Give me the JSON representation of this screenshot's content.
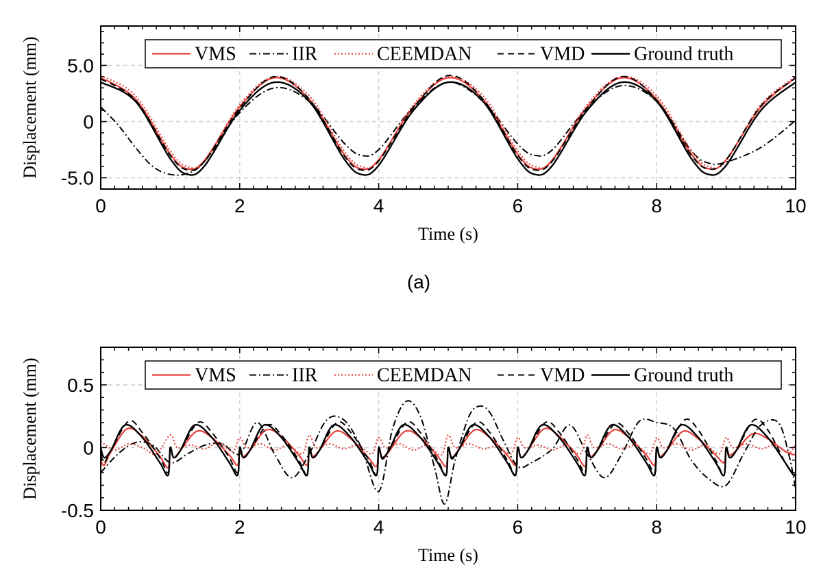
{
  "chart_data": [
    {
      "type": "line",
      "panel_label": "(a)",
      "xlabel": "Time (s)",
      "ylabel": "Displacement (mm)",
      "xlim": [
        0,
        10
      ],
      "ylim": [
        -6.0,
        8.5
      ],
      "xticks": [
        0,
        2,
        4,
        6,
        8,
        10
      ],
      "xtick_labels": [
        "0",
        "2",
        "4",
        "6",
        "8",
        "10"
      ],
      "yticks": [
        -5.0,
        0,
        5.0
      ],
      "ytick_labels": [
        "-5.0",
        "0",
        "5.0"
      ],
      "grid": true,
      "legend_position": "top",
      "legend": [
        "VMS",
        "IIR",
        "CEEMDAN",
        "VMD",
        "Ground truth"
      ],
      "series": [
        {
          "name": "VMS",
          "color": "#e8413c",
          "dash": "solid",
          "width": 2.2,
          "x": [
            0,
            0.5,
            1,
            1.25,
            1.5,
            2,
            2.5,
            3,
            3.5,
            3.75,
            4,
            4.5,
            5,
            5.5,
            6,
            6.25,
            6.5,
            7,
            7.5,
            8,
            8.5,
            8.75,
            9,
            9.5,
            10
          ],
          "y": [
            3.9,
            2.0,
            -2.9,
            -4.2,
            -3.4,
            1.3,
            3.9,
            2.0,
            -2.9,
            -4.2,
            -3.4,
            1.3,
            3.9,
            2.0,
            -2.9,
            -4.2,
            -3.4,
            1.3,
            3.9,
            2.0,
            -2.9,
            -4.2,
            -3.4,
            1.3,
            3.9
          ]
        },
        {
          "name": "IIR",
          "color": "#000000",
          "dash": "10,4,2,4",
          "width": 2.0,
          "x": [
            0,
            0.25,
            0.5,
            0.75,
            1,
            1.25,
            1.5,
            2,
            2.5,
            3,
            3.5,
            3.75,
            4,
            4.5,
            5,
            5.5,
            6,
            6.25,
            6.5,
            7,
            7.5,
            8,
            8.5,
            8.75,
            9,
            9.5,
            10
          ],
          "y": [
            1.3,
            -0.3,
            -2.3,
            -4.0,
            -4.7,
            -4.6,
            -3.5,
            0.8,
            3.0,
            1.8,
            -1.9,
            -3.0,
            -2.5,
            1.3,
            3.5,
            1.8,
            -2.0,
            -3.0,
            -2.5,
            1.2,
            3.2,
            1.8,
            -2.6,
            -3.7,
            -3.6,
            -2.3,
            0.1
          ]
        },
        {
          "name": "CEEMDAN",
          "color": "#e8413c",
          "dash": "2,3",
          "width": 2.2,
          "x": [
            0,
            0.5,
            1,
            1.25,
            1.5,
            2,
            2.5,
            3,
            3.5,
            3.75,
            4,
            4.5,
            5,
            5.5,
            6,
            6.25,
            6.5,
            7,
            7.5,
            8,
            8.5,
            8.75,
            9,
            9.5,
            10
          ],
          "y": [
            4.1,
            2.3,
            -2.6,
            -4.0,
            -3.5,
            1.5,
            4.0,
            2.3,
            -2.6,
            -4.0,
            -3.5,
            1.5,
            4.0,
            2.3,
            -2.6,
            -4.0,
            -3.5,
            1.5,
            4.0,
            2.3,
            -2.6,
            -4.0,
            -3.5,
            1.5,
            4.0
          ]
        },
        {
          "name": "VMD",
          "color": "#000000",
          "dash": "9,6",
          "width": 2.0,
          "x": [
            0,
            0.5,
            1,
            1.25,
            1.5,
            2,
            2.5,
            3,
            3.5,
            3.75,
            4,
            4.5,
            5,
            5.5,
            6,
            6.25,
            6.5,
            7,
            7.5,
            8,
            8.5,
            8.75,
            9,
            9.5,
            10
          ],
          "y": [
            3.8,
            1.9,
            -3.0,
            -4.3,
            -3.5,
            1.2,
            4.0,
            2.0,
            -3.0,
            -4.3,
            -3.5,
            1.2,
            4.1,
            2.0,
            -3.0,
            -4.3,
            -3.5,
            1.2,
            4.0,
            1.9,
            -3.0,
            -4.2,
            -3.4,
            1.4,
            3.9
          ]
        },
        {
          "name": "Ground truth",
          "color": "#000000",
          "dash": "solid",
          "width": 2.4,
          "x": [
            0,
            0.5,
            1,
            1.25,
            1.5,
            2,
            2.5,
            3,
            3.5,
            3.75,
            4,
            4.5,
            5,
            5.5,
            6,
            6.25,
            6.5,
            7,
            7.5,
            8,
            8.5,
            8.75,
            9,
            9.5,
            10
          ],
          "y": [
            3.5,
            1.8,
            -3.3,
            -4.7,
            -3.9,
            1.0,
            3.5,
            1.8,
            -3.3,
            -4.7,
            -3.9,
            1.0,
            3.5,
            1.8,
            -3.3,
            -4.7,
            -3.9,
            1.0,
            3.5,
            1.8,
            -3.3,
            -4.7,
            -3.9,
            1.0,
            3.5
          ]
        }
      ]
    },
    {
      "type": "line",
      "xlabel": "Time (s)",
      "ylabel": "Displacement (mm)",
      "xlim": [
        0,
        10
      ],
      "ylim": [
        -0.5,
        0.8
      ],
      "xticks": [
        0,
        2,
        4,
        6,
        8,
        10
      ],
      "xtick_labels": [
        "0",
        "2",
        "4",
        "6",
        "8",
        "10"
      ],
      "yticks": [
        -0.5,
        0,
        0.5
      ],
      "ytick_labels": [
        "-0.5",
        "0",
        "0.5"
      ],
      "grid": true,
      "legend_position": "top",
      "legend": [
        "VMS",
        "IIR",
        "CEEMDAN",
        "VMD",
        "Ground truth"
      ],
      "series": [
        {
          "name": "VMS",
          "color": "#e8413c",
          "dash": "solid",
          "width": 2.2,
          "x": [
            0,
            0.05,
            0.15,
            0.38,
            0.6,
            0.85,
            0.97,
            1.0,
            1.05,
            1.15,
            1.38,
            1.6,
            1.85,
            1.97,
            2.0,
            2.05,
            2.15,
            2.38,
            2.6,
            2.85,
            2.97,
            3.0,
            3.05,
            3.15,
            3.38,
            3.6,
            3.85,
            3.97,
            4.0,
            4.05,
            4.15,
            4.38,
            4.6,
            4.85,
            4.97,
            5.0,
            5.05,
            5.15,
            5.38,
            5.6,
            5.85,
            5.97,
            6.0,
            6.05,
            6.15,
            6.38,
            6.6,
            6.85,
            6.97,
            7.0,
            7.05,
            7.15,
            7.38,
            7.6,
            7.85,
            7.97,
            8.0,
            8.05,
            8.15,
            8.38,
            8.6,
            8.85,
            8.97,
            9.0,
            9.05,
            9.15,
            9.38,
            9.6,
            9.85,
            10.0
          ],
          "y": [
            -0.1,
            -0.14,
            -0.03,
            0.15,
            0.09,
            -0.07,
            -0.16,
            0.0,
            -0.08,
            -0.02,
            0.13,
            0.08,
            -0.06,
            -0.14,
            0.0,
            -0.07,
            -0.02,
            0.14,
            0.09,
            -0.06,
            -0.14,
            0.0,
            -0.07,
            -0.02,
            0.13,
            0.07,
            -0.08,
            -0.15,
            0.0,
            -0.09,
            -0.03,
            0.13,
            0.08,
            -0.07,
            -0.15,
            0.0,
            -0.08,
            -0.02,
            0.14,
            0.08,
            -0.06,
            -0.14,
            0.0,
            -0.08,
            -0.02,
            0.15,
            0.09,
            -0.06,
            -0.15,
            0.0,
            -0.07,
            -0.02,
            0.14,
            0.08,
            -0.06,
            -0.14,
            0.0,
            -0.07,
            -0.02,
            0.13,
            0.07,
            -0.06,
            -0.12,
            0.0,
            -0.06,
            -0.02,
            0.11,
            0.07,
            -0.03,
            -0.06
          ]
        },
        {
          "name": "IIR",
          "color": "#000000",
          "dash": "10,4,2,4",
          "width": 2.0,
          "x": [
            0,
            0.25,
            0.5,
            0.75,
            1.0,
            1.25,
            1.5,
            1.75,
            2.0,
            2.25,
            2.5,
            2.75,
            3.0,
            3.25,
            3.5,
            3.75,
            4.0,
            4.2,
            4.4,
            4.6,
            4.8,
            4.95,
            5.1,
            5.3,
            5.45,
            5.6,
            5.8,
            6.0,
            6.2,
            6.5,
            6.75,
            7.0,
            7.25,
            7.5,
            7.75,
            8.0,
            8.25,
            8.5,
            8.75,
            9.0,
            9.25,
            9.5,
            9.75,
            9.9,
            10.0
          ],
          "y": [
            -0.2,
            -0.05,
            0.04,
            0.02,
            -0.12,
            -0.05,
            0.02,
            0.03,
            -0.05,
            0.2,
            -0.05,
            -0.24,
            -0.05,
            0.22,
            0.22,
            0.0,
            -0.35,
            0.15,
            0.37,
            0.25,
            -0.15,
            -0.45,
            -0.1,
            0.25,
            0.33,
            0.28,
            0.05,
            -0.15,
            -0.12,
            -0.01,
            0.18,
            -0.05,
            -0.24,
            -0.05,
            0.21,
            0.2,
            0.15,
            -0.1,
            -0.25,
            -0.3,
            -0.05,
            0.18,
            0.2,
            -0.05,
            -0.33
          ]
        },
        {
          "name": "CEEMDAN",
          "color": "#e8413c",
          "dash": "2,3",
          "width": 2.2,
          "x": [
            0,
            0.2,
            0.4,
            0.6,
            0.8,
            1.0,
            1.1,
            1.3,
            1.5,
            1.7,
            1.9,
            2.0,
            2.1,
            2.3,
            2.5,
            2.7,
            2.9,
            3.0,
            3.1,
            3.3,
            3.5,
            3.7,
            3.9,
            4.0,
            4.1,
            4.3,
            4.5,
            4.7,
            4.9,
            5.0,
            5.1,
            5.3,
            5.5,
            5.7,
            5.9,
            6.0,
            6.1,
            6.3,
            6.5,
            6.7,
            6.9,
            7.0,
            7.1,
            7.3,
            7.5,
            7.7,
            7.9,
            8.0,
            8.1,
            8.3,
            8.5,
            8.7,
            8.9,
            9.0,
            9.1,
            9.3,
            9.5,
            9.7,
            9.9,
            10.0
          ],
          "y": [
            0.05,
            -0.02,
            0.03,
            0.0,
            -0.05,
            0.1,
            0.0,
            0.02,
            -0.01,
            0.04,
            -0.03,
            0.08,
            0.0,
            0.03,
            -0.02,
            0.02,
            -0.05,
            0.1,
            0.0,
            0.03,
            -0.01,
            0.02,
            -0.05,
            0.08,
            0.0,
            0.03,
            -0.02,
            0.02,
            -0.06,
            0.1,
            0.0,
            0.03,
            -0.01,
            0.01,
            -0.05,
            0.08,
            0.0,
            0.02,
            -0.02,
            0.02,
            -0.05,
            0.1,
            0.0,
            0.03,
            -0.01,
            0.02,
            -0.05,
            0.08,
            0.0,
            0.03,
            -0.02,
            0.02,
            -0.05,
            0.08,
            0.0,
            0.03,
            -0.01,
            0.02,
            -0.04,
            0.03
          ]
        },
        {
          "name": "VMD",
          "color": "#000000",
          "dash": "9,6",
          "width": 2.0,
          "x": [
            0,
            0.05,
            0.15,
            0.4,
            0.6,
            0.85,
            0.97,
            1.0,
            1.05,
            1.15,
            1.4,
            1.6,
            1.85,
            1.97,
            2.0,
            2.05,
            2.15,
            2.4,
            2.6,
            2.85,
            2.97,
            3.0,
            3.05,
            3.15,
            3.4,
            3.6,
            3.85,
            3.97,
            4.0,
            4.05,
            4.15,
            4.4,
            4.6,
            4.85,
            4.97,
            5.0,
            5.05,
            5.15,
            5.4,
            5.6,
            5.85,
            5.97,
            6.0,
            6.05,
            6.15,
            6.4,
            6.6,
            6.85,
            6.97,
            7.0,
            7.05,
            7.15,
            7.4,
            7.6,
            7.85,
            7.97,
            8.0,
            8.05,
            8.15,
            8.4,
            8.6,
            8.85,
            8.97,
            9.0,
            9.05,
            9.15,
            9.4,
            9.6,
            9.85,
            9.97,
            10.0
          ],
          "y": [
            -0.05,
            -0.12,
            -0.02,
            0.21,
            0.12,
            -0.08,
            -0.2,
            0.0,
            -0.08,
            -0.02,
            0.2,
            0.12,
            -0.08,
            -0.2,
            0.0,
            -0.08,
            -0.02,
            0.18,
            0.1,
            -0.1,
            -0.22,
            0.0,
            -0.08,
            -0.02,
            0.2,
            0.12,
            -0.09,
            -0.22,
            0.0,
            -0.09,
            -0.02,
            0.2,
            0.12,
            -0.1,
            -0.22,
            0.0,
            -0.09,
            -0.02,
            0.2,
            0.12,
            -0.1,
            -0.22,
            0.0,
            -0.08,
            -0.02,
            0.2,
            0.12,
            -0.09,
            -0.2,
            0.0,
            -0.08,
            -0.02,
            0.19,
            0.11,
            -0.09,
            -0.2,
            0.0,
            -0.08,
            -0.02,
            0.22,
            0.14,
            -0.1,
            -0.22,
            0.0,
            -0.08,
            -0.02,
            0.22,
            0.14,
            -0.12,
            -0.22,
            -0.2
          ]
        },
        {
          "name": "Ground truth",
          "color": "#000000",
          "dash": "solid",
          "width": 2.4,
          "x": [
            0,
            0.05,
            0.15,
            0.35,
            0.6,
            0.85,
            0.97,
            1.0,
            1.05,
            1.15,
            1.35,
            1.6,
            1.85,
            1.97,
            2.0,
            2.05,
            2.15,
            2.35,
            2.6,
            2.85,
            2.97,
            3.0,
            3.05,
            3.15,
            3.35,
            3.6,
            3.85,
            3.97,
            4.0,
            4.05,
            4.15,
            4.35,
            4.6,
            4.85,
            4.97,
            5.0,
            5.05,
            5.15,
            5.35,
            5.6,
            5.85,
            5.97,
            6.0,
            6.05,
            6.15,
            6.35,
            6.6,
            6.85,
            6.97,
            7.0,
            7.05,
            7.15,
            7.35,
            7.6,
            7.85,
            7.97,
            8.0,
            8.05,
            8.15,
            8.35,
            8.6,
            8.85,
            8.97,
            9.0,
            9.05,
            9.15,
            9.35,
            9.6,
            9.85,
            9.97,
            10.0
          ],
          "y": [
            0.0,
            -0.08,
            -0.02,
            0.18,
            0.08,
            -0.12,
            -0.22,
            0.0,
            -0.08,
            -0.02,
            0.18,
            0.08,
            -0.12,
            -0.22,
            0.0,
            -0.08,
            -0.02,
            0.18,
            0.08,
            -0.12,
            -0.22,
            0.0,
            -0.08,
            -0.02,
            0.18,
            0.08,
            -0.12,
            -0.22,
            0.0,
            -0.08,
            -0.02,
            0.18,
            0.08,
            -0.12,
            -0.22,
            0.0,
            -0.08,
            -0.02,
            0.18,
            0.08,
            -0.12,
            -0.22,
            0.0,
            -0.08,
            -0.02,
            0.18,
            0.08,
            -0.12,
            -0.22,
            0.0,
            -0.08,
            -0.02,
            0.18,
            0.08,
            -0.12,
            -0.22,
            0.0,
            -0.08,
            -0.02,
            0.18,
            0.08,
            -0.12,
            -0.22,
            0.0,
            -0.08,
            -0.02,
            0.18,
            0.08,
            -0.12,
            -0.22,
            -0.2
          ]
        }
      ]
    }
  ]
}
